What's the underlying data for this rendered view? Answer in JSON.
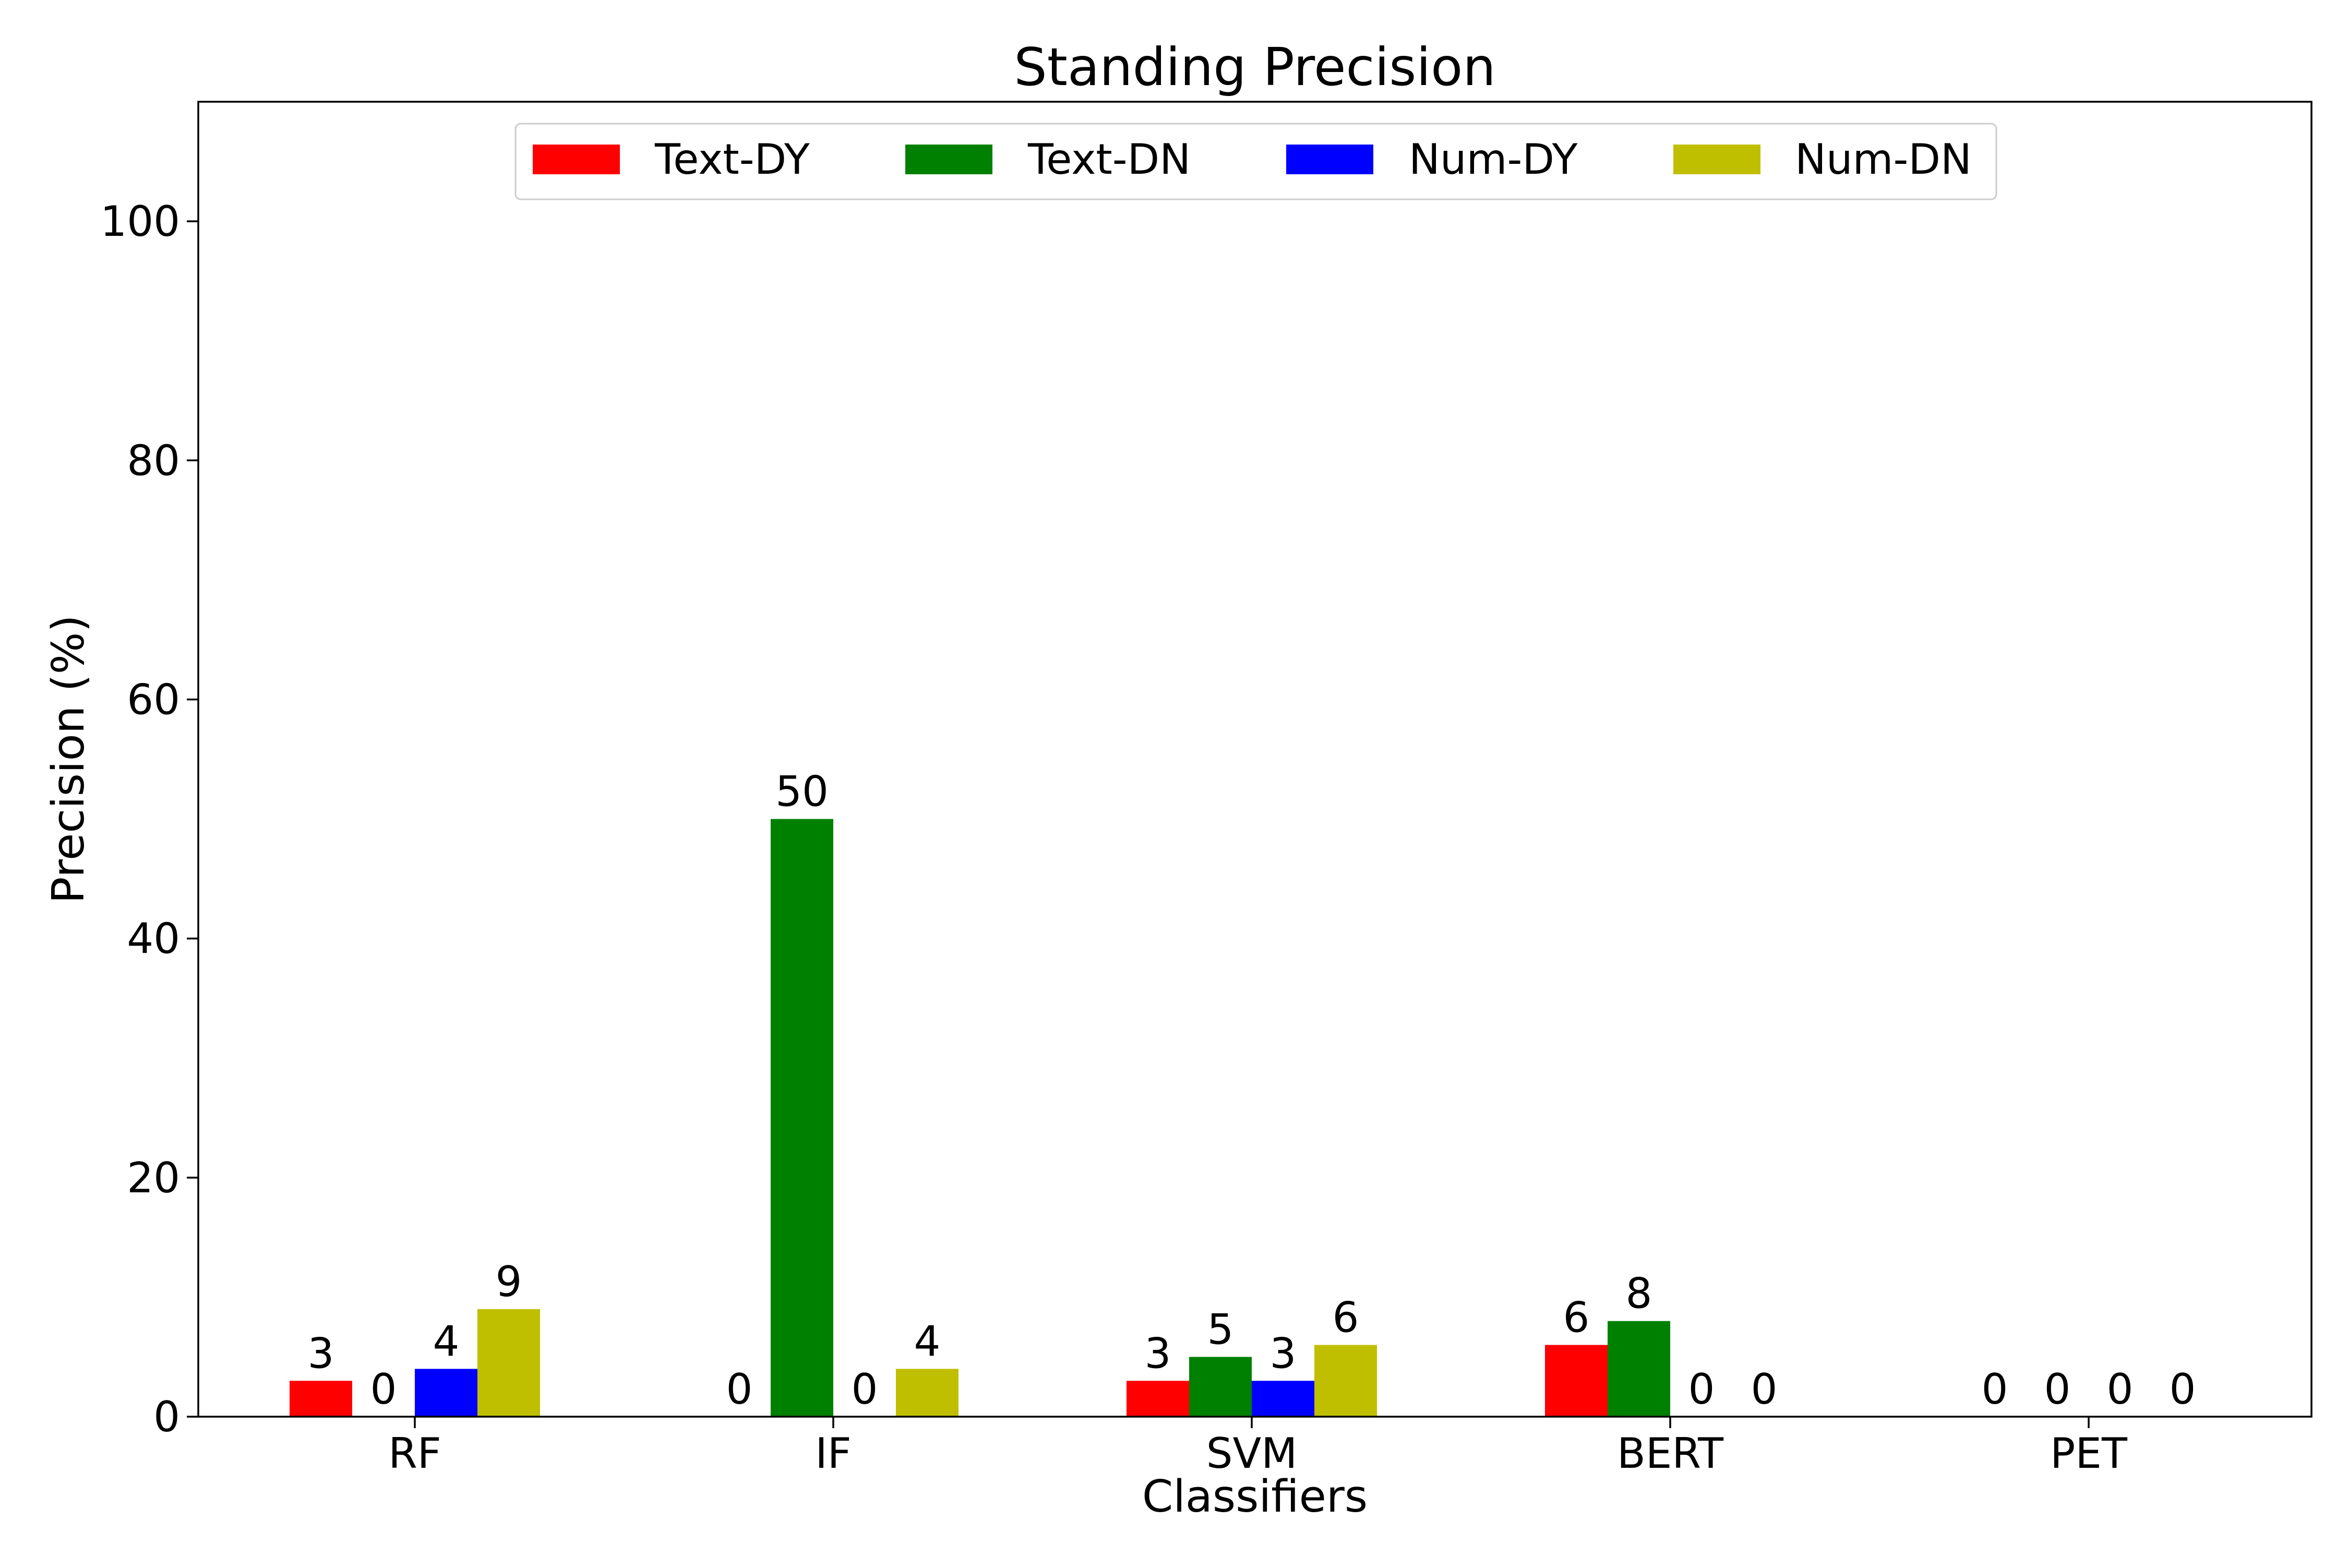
{
  "chart_data": {
    "type": "bar",
    "title": "Standing Precision",
    "xlabel": "Classifiers",
    "ylabel": "Precision (%)",
    "categories": [
      "RF",
      "IF",
      "SVM",
      "BERT",
      "PET"
    ],
    "series": [
      {
        "name": "Text-DY",
        "color": "#ff0000",
        "values": [
          3,
          0,
          3,
          6,
          0
        ]
      },
      {
        "name": "Text-DN",
        "color": "#008000",
        "values": [
          0,
          50,
          5,
          8,
          0
        ]
      },
      {
        "name": "Num-DY",
        "color": "#0000ff",
        "values": [
          4,
          0,
          3,
          0,
          0
        ]
      },
      {
        "name": "Num-DN",
        "color": "#bfbf00",
        "values": [
          9,
          4,
          6,
          0,
          0
        ]
      }
    ],
    "ylim": [
      0,
      110
    ],
    "yticks": [
      0,
      20,
      40,
      60,
      80,
      100
    ],
    "legend": {
      "placement": "top-center",
      "ncol": 4
    },
    "grid": false
  }
}
